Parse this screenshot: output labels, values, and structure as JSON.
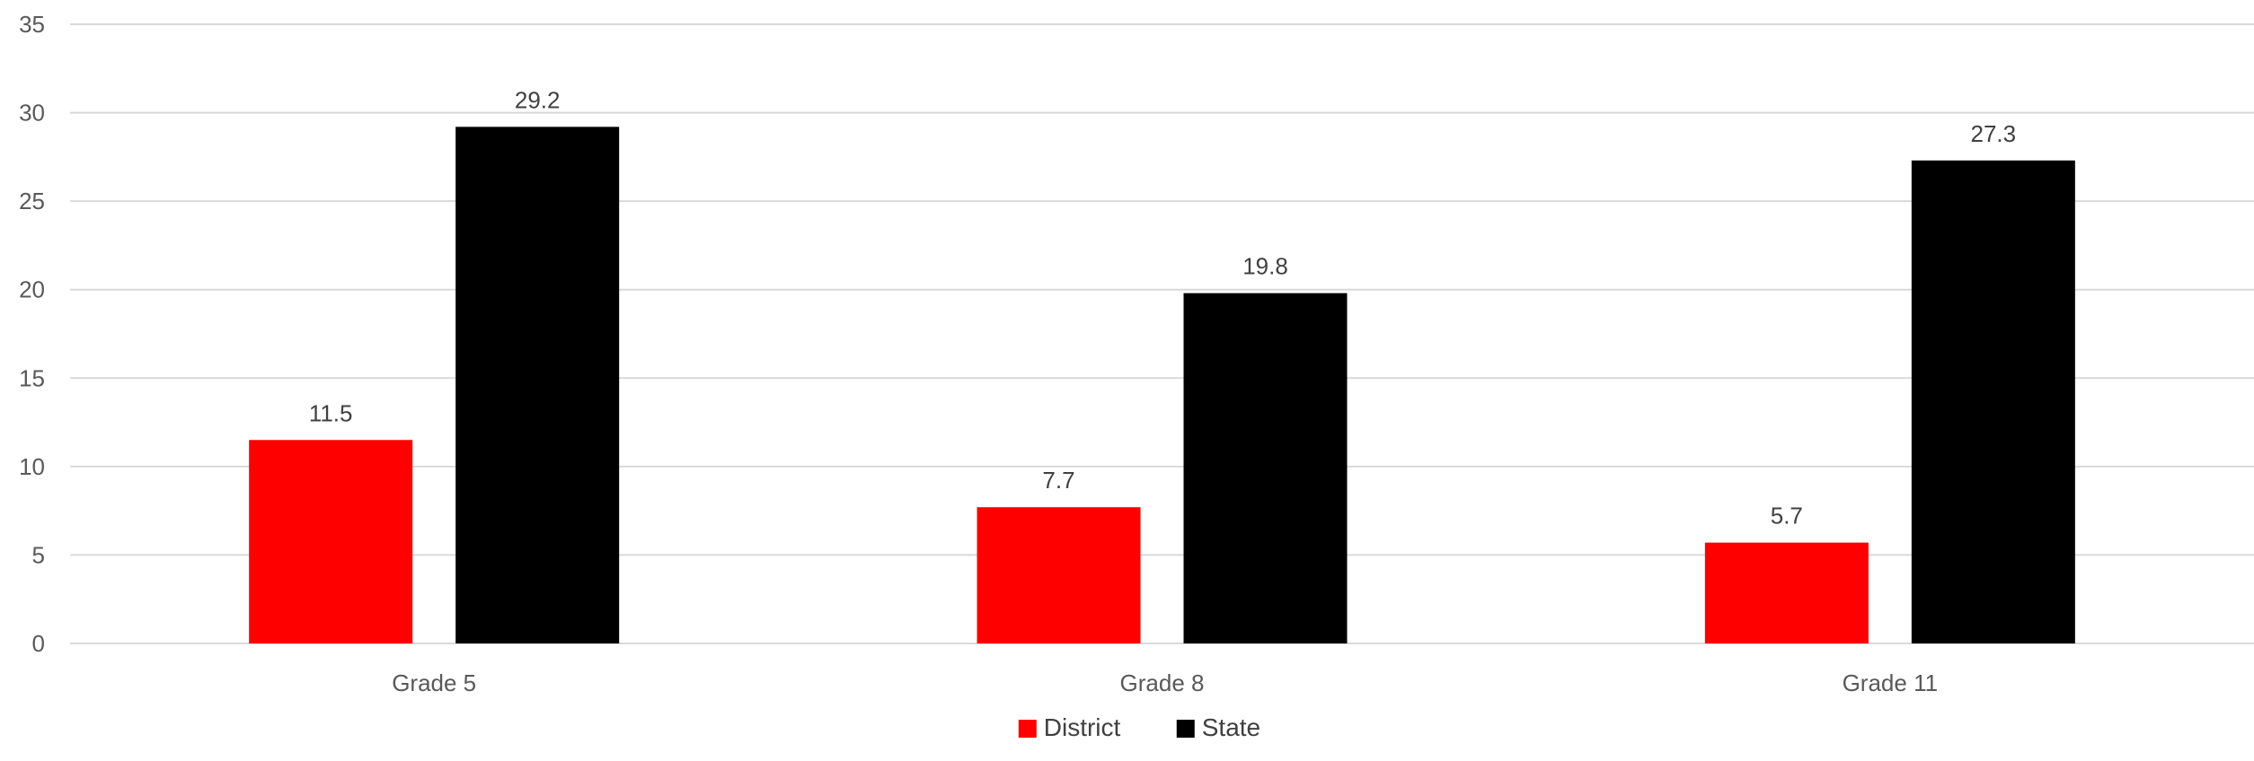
{
  "chart_data": {
    "type": "bar",
    "categories": [
      "Grade 5",
      "Grade 8",
      "Grade 11"
    ],
    "series": [
      {
        "name": "District",
        "values": [
          11.5,
          7.7,
          5.7
        ],
        "color": "#ff0000"
      },
      {
        "name": "State",
        "values": [
          29.2,
          19.8,
          27.3
        ],
        "color": "#000000"
      }
    ],
    "title": "",
    "xlabel": "",
    "ylabel": "",
    "ylim": [
      0,
      35
    ],
    "yticks": [
      0,
      5,
      10,
      15,
      20,
      25,
      30,
      35
    ],
    "grid": true,
    "legend_position": "bottom-center",
    "data_labels": true
  }
}
